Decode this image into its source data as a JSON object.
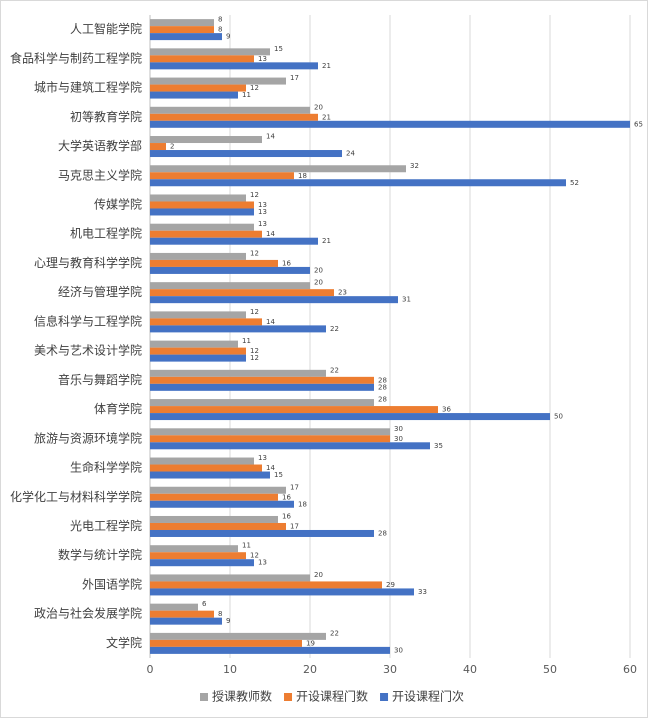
{
  "chart_data": {
    "type": "bar",
    "orientation": "horizontal",
    "categories": [
      "人工智能学院",
      "食品科学与制药工程学院",
      "城市与建筑工程学院",
      "初等教育学院",
      "大学英语教学部",
      "马克思主义学院",
      "传媒学院",
      "机电工程学院",
      "心理与教育科学学院",
      "经济与管理学院",
      "信息科学与工程学院",
      "美术与艺术设计学院",
      "音乐与舞蹈学院",
      "体育学院",
      "旅游与资源环境学院",
      "生命科学学院",
      "化学化工与材料科学学院",
      "光电工程学院",
      "数学与统计学院",
      "外国语学院",
      "政治与社会发展学院",
      "文学院"
    ],
    "series": [
      {
        "name": "授课教师数",
        "color": "#a5a5a5",
        "values": [
          8,
          15,
          17,
          20,
          14,
          32,
          12,
          13,
          12,
          20,
          12,
          11,
          22,
          28,
          30,
          13,
          17,
          16,
          11,
          20,
          6,
          22
        ]
      },
      {
        "name": "开设课程门数",
        "color": "#ed7d31",
        "values": [
          8,
          13,
          12,
          21,
          2,
          18,
          13,
          14,
          16,
          23,
          14,
          12,
          28,
          36,
          30,
          14,
          16,
          17,
          12,
          29,
          8,
          19
        ]
      },
      {
        "name": "开设课程门次",
        "color": "#4472c4",
        "values": [
          9,
          21,
          11,
          65,
          24,
          52,
          13,
          21,
          20,
          31,
          22,
          12,
          28,
          50,
          35,
          15,
          18,
          28,
          13,
          33,
          9,
          30
        ]
      }
    ],
    "xlim": [
      0,
      60
    ],
    "xticks": [
      0,
      10,
      20,
      30,
      40,
      50,
      60
    ],
    "grid": true,
    "legend": "bottom"
  }
}
